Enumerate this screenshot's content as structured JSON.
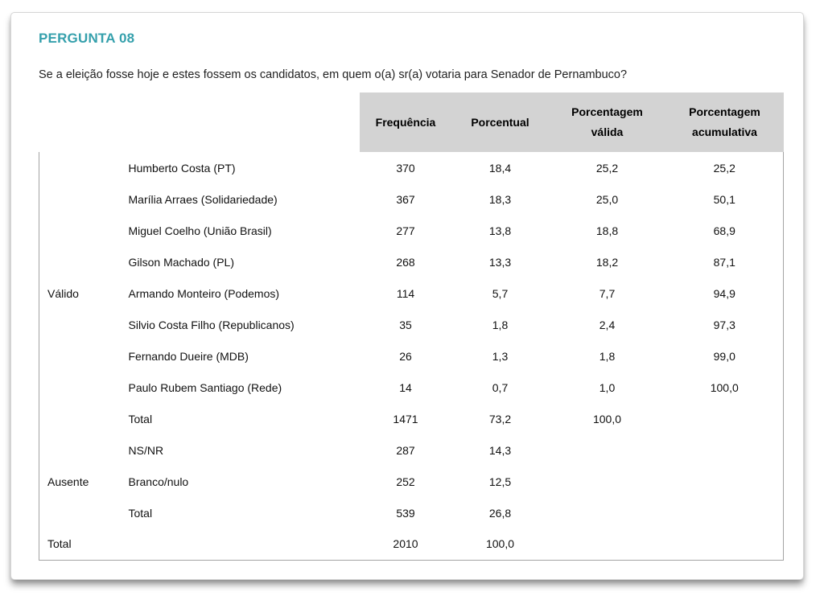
{
  "page": {
    "title": "PERGUNTA 08",
    "question": "Se a eleição fosse hoje e estes fossem os candidatos, em quem o(a) sr(a) votaria para Senador de Pernambuco?"
  },
  "colors": {
    "accent_teal": "#35a0ac",
    "header_bg": "#d3d3d3",
    "border_outer": "#a3a3a3",
    "border_inner": "#c9c9c9"
  },
  "chart_data": {
    "type": "table",
    "column_headers": [
      "Frequência",
      "Porcentual",
      "Porcentagem válida",
      "Porcentagem acumulativa"
    ],
    "groups": [
      {
        "label": "Válido",
        "rows": [
          [
            "Humberto Costa (PT)",
            "370",
            "18,4",
            "25,2",
            "25,2"
          ],
          [
            "Marília Arraes (Solidariedade)",
            "367",
            "18,3",
            "25,0",
            "50,1"
          ],
          [
            "Miguel Coelho (União Brasil)",
            "277",
            "13,8",
            "18,8",
            "68,9"
          ],
          [
            "Gilson Machado (PL)",
            "268",
            "13,3",
            "18,2",
            "87,1"
          ],
          [
            "Armando Monteiro (Podemos)",
            "114",
            "5,7",
            "7,7",
            "94,9"
          ],
          [
            "Silvio Costa Filho (Republicanos)",
            "35",
            "1,8",
            "2,4",
            "97,3"
          ],
          [
            "Fernando Dueire (MDB)",
            "26",
            "1,3",
            "1,8",
            "99,0"
          ],
          [
            "Paulo Rubem Santiago (Rede)",
            "14",
            "0,7",
            "1,0",
            "100,0"
          ],
          [
            "Total",
            "1471",
            "73,2",
            "100,0",
            ""
          ]
        ]
      },
      {
        "label": "Ausente",
        "rows": [
          [
            "NS/NR",
            "287",
            "14,3",
            "",
            ""
          ],
          [
            "Branco/nulo",
            "252",
            "12,5",
            "",
            ""
          ],
          [
            "Total",
            "539",
            "26,8",
            "",
            ""
          ]
        ]
      }
    ],
    "grand_total": [
      "Total",
      "2010",
      "100,0",
      "",
      ""
    ]
  }
}
